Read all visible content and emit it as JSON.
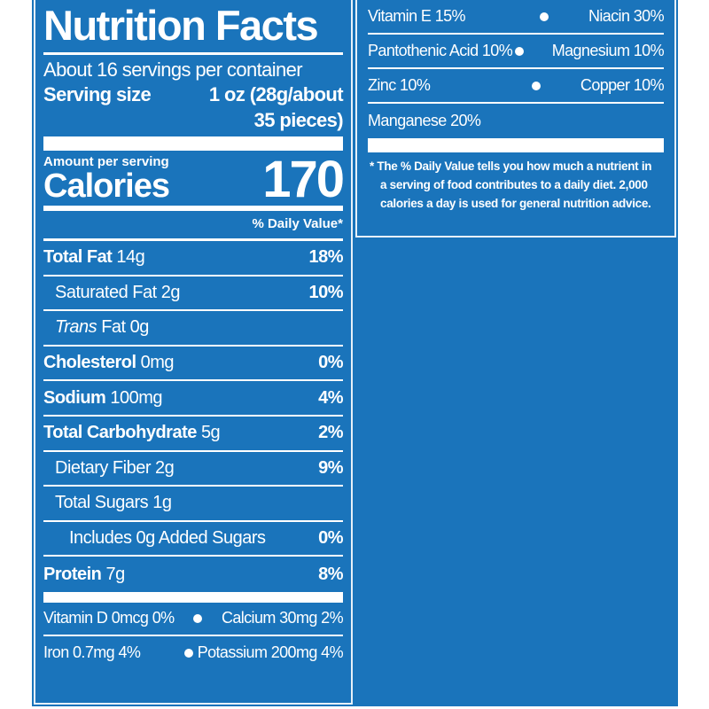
{
  "title": "Nutrition Facts",
  "servings": "About 16 servings per container",
  "serving_size_label": "Serving size",
  "serving_size_value_1": "1 oz (28g/about",
  "serving_size_value_2": "35 pieces)",
  "amount_per_serving": "Amount per serving",
  "calories_label": "Calories",
  "calories_value": "170",
  "daily_value_header": "% Daily Value*",
  "nutrients": [
    {
      "name": "Total Fat",
      "amount": "14g",
      "dv": "18%"
    },
    {
      "name": "Saturated Fat",
      "amount": "2g",
      "dv": "10%"
    },
    {
      "name": "Trans",
      "name2": "Fat",
      "amount": "0g",
      "dv": ""
    },
    {
      "name": "Cholesterol",
      "amount": "0mg",
      "dv": "0%"
    },
    {
      "name": "Sodium",
      "amount": "100mg",
      "dv": "4%"
    },
    {
      "name": "Total Carbohydrate",
      "amount": "5g",
      "dv": "2%"
    },
    {
      "name": "Dietary Fiber",
      "amount": "2g",
      "dv": "9%"
    },
    {
      "name": "Total Sugars",
      "amount": "1g",
      "dv": ""
    },
    {
      "name": "Includes 0g Added Sugars",
      "amount": "",
      "dv": "0%"
    },
    {
      "name": "Protein",
      "amount": "7g",
      "dv": "8%"
    }
  ],
  "minerals": [
    {
      "left": "Vitamin D 0mcg 0%",
      "right": "Calcium 30mg 2%"
    },
    {
      "left": "Iron 0.7mg 4%",
      "right": "Potassium 200mg 4%"
    }
  ],
  "vitamins": [
    {
      "left": "Vitamin E 15%",
      "right": "Niacin 30%"
    },
    {
      "left": "Pantothenic Acid 10%",
      "right": "Magnesium 10%"
    },
    {
      "left": "Zinc 10%",
      "right": "Copper 10%"
    },
    {
      "left": "Manganese 20%",
      "right": ""
    }
  ],
  "footnote": [
    "* The % Daily Value tells you how much a nutrient in",
    "a serving of food contributes to a daily diet. 2,000",
    "calories a day is used for general nutrition advice."
  ],
  "colors": {
    "background": "#1a74bb",
    "text": "#ffffff"
  }
}
